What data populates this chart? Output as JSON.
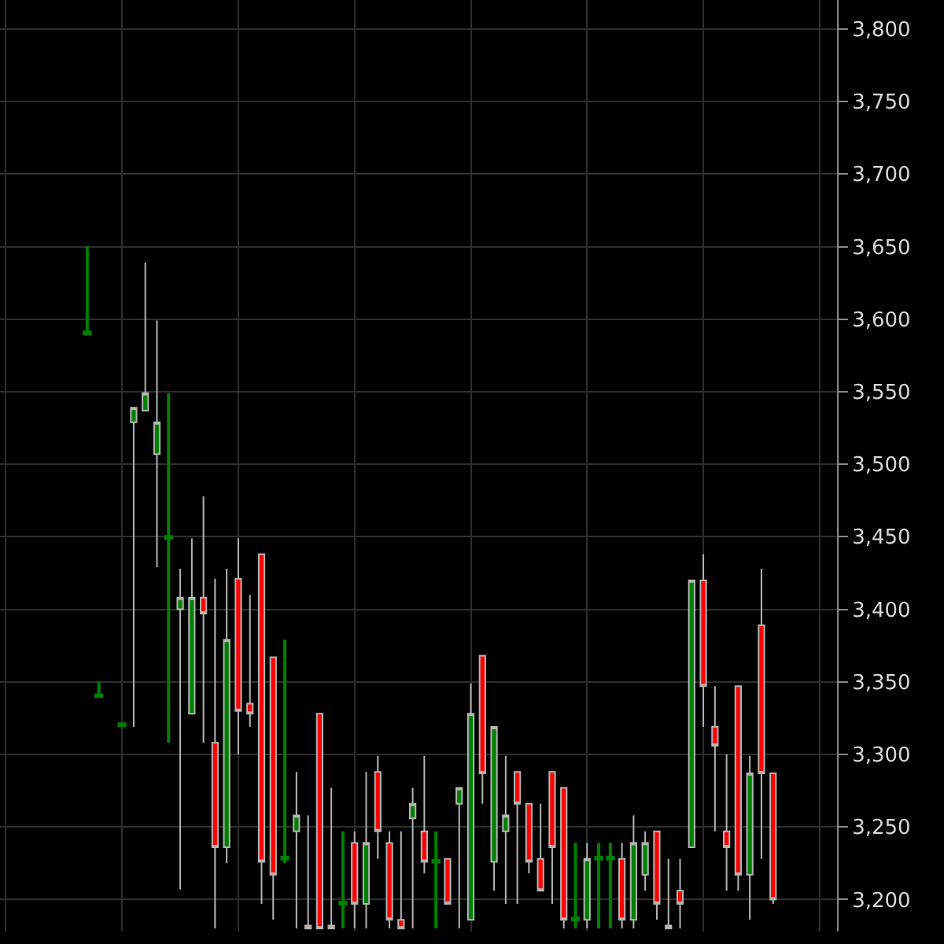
{
  "chart_data": {
    "type": "candlestick",
    "categories": [
      null,
      null,
      null,
      null,
      null,
      null,
      null,
      null,
      null,
      null,
      null,
      null,
      null,
      null,
      null,
      null,
      null,
      null,
      null,
      null,
      null,
      null,
      null,
      null,
      null,
      null,
      null,
      null,
      null,
      null,
      null,
      null,
      null,
      null,
      null,
      null,
      null,
      null,
      null,
      null,
      null,
      null,
      null,
      null,
      null,
      null,
      null,
      null,
      null,
      null,
      null,
      null,
      null,
      null,
      null,
      null,
      null,
      null,
      null,
      null,
      null,
      null,
      null,
      null,
      null,
      null,
      null,
      null,
      null,
      null,
      null,
      null
    ],
    "ohlc": [
      null,
      null,
      null,
      null,
      null,
      null,
      null,
      [
        3590,
        3650,
        3590,
        3591
      ],
      [
        3340,
        3350,
        3340,
        3341
      ],
      null,
      [
        3320,
        3321,
        3320,
        3321
      ],
      [
        3529,
        3539,
        3319,
        3539
      ],
      [
        3537,
        3639,
        3537,
        3549
      ],
      [
        3507,
        3599,
        3429,
        3529
      ],
      [
        3449,
        3549,
        3308,
        3450
      ],
      [
        3400,
        3428,
        3207,
        3408
      ],
      [
        3328,
        3449,
        3328,
        3408
      ],
      [
        3408,
        3478,
        3308,
        3397
      ],
      [
        3308,
        3421,
        3180,
        3236
      ],
      [
        3236,
        3428,
        3225,
        3379
      ],
      [
        3421,
        3449,
        3300,
        3330
      ],
      [
        3335,
        3410,
        3319,
        3328
      ],
      [
        3438,
        3438,
        3197,
        3226
      ],
      [
        3367,
        3367,
        3186,
        3217
      ],
      [
        3228,
        3379,
        3225,
        3229
      ],
      [
        3247,
        3288,
        3180,
        3258
      ],
      [
        3182,
        3258,
        3180,
        3180
      ],
      [
        3328,
        3328,
        3180,
        3180
      ],
      [
        3182,
        3277,
        3180,
        3180
      ],
      [
        3197,
        3247,
        3180,
        3198
      ],
      [
        3239,
        3247,
        3180,
        3197
      ],
      [
        3197,
        3288,
        3180,
        3239
      ],
      [
        3288,
        3299,
        3228,
        3247
      ],
      [
        3239,
        3247,
        3180,
        3186
      ],
      [
        3186,
        3247,
        3180,
        3180
      ],
      [
        3256,
        3277,
        3180,
        3266
      ],
      [
        3247,
        3299,
        3218,
        3226
      ],
      [
        3226,
        3247,
        3180,
        3227
      ],
      [
        3228,
        3228,
        3197,
        3197
      ],
      [
        3266,
        3277,
        3180,
        3277
      ],
      [
        3186,
        3349,
        3186,
        3328
      ],
      [
        3368,
        3368,
        3266,
        3287
      ],
      [
        3226,
        3319,
        3206,
        3319
      ],
      [
        3247,
        3299,
        3197,
        3258
      ],
      [
        3288,
        3288,
        3197,
        3266
      ],
      [
        3266,
        3266,
        3218,
        3226
      ],
      [
        3228,
        3266,
        3206,
        3206
      ],
      [
        3288,
        3288,
        3197,
        3236
      ],
      [
        3277,
        3277,
        3180,
        3186
      ],
      [
        3186,
        3239,
        3180,
        3187
      ],
      [
        3186,
        3239,
        3180,
        3228
      ],
      [
        3228,
        3239,
        3180,
        3229
      ],
      [
        3228,
        3239,
        3180,
        3229
      ],
      [
        3228,
        3239,
        3180,
        3186
      ],
      [
        3186,
        3258,
        3180,
        3239
      ],
      [
        3217,
        3247,
        3206,
        3239
      ],
      [
        3247,
        3247,
        3186,
        3197
      ],
      [
        3182,
        3228,
        3180,
        3180
      ],
      [
        3206,
        3228,
        3180,
        3197
      ],
      [
        3236,
        3420,
        3236,
        3420
      ],
      [
        3420,
        3438,
        3319,
        3347
      ],
      [
        3319,
        3347,
        3247,
        3306
      ],
      [
        3247,
        3300,
        3206,
        3236
      ],
      [
        3347,
        3347,
        3206,
        3217
      ],
      [
        3217,
        3299,
        3186,
        3287
      ],
      [
        3389,
        3428,
        3228,
        3287
      ],
      [
        3287,
        3287,
        3197,
        3200
      ],
      null,
      null,
      null,
      null,
      null
    ],
    "colors": [
      null,
      null,
      null,
      null,
      null,
      null,
      null,
      "#008000",
      "#008000",
      null,
      "#008000",
      "#008000",
      "#008000",
      "#008000",
      "#008000",
      "#008000",
      "#008000",
      "#ff0000",
      "#ff0000",
      "#008000",
      "#ff0000",
      "#ff0000",
      "#ff0000",
      "#ff0000",
      "#008000",
      "#008000",
      "#b4b4b4",
      "#ff0000",
      "#b4b4b4",
      "#008000",
      "#ff0000",
      "#008000",
      "#ff0000",
      "#ff0000",
      "#ff0000",
      "#008000",
      "#ff0000",
      "#008000",
      "#ff0000",
      "#008000",
      "#008000",
      "#ff0000",
      "#008000",
      "#008000",
      "#ff0000",
      "#ff0000",
      "#ff0000",
      "#ff0000",
      "#ff0000",
      "#008000",
      "#008000",
      "#008000",
      "#008000",
      "#ff0000",
      "#008000",
      "#008000",
      "#ff0000",
      "#b4b4b4",
      "#ff0000",
      "#008000",
      "#ff0000",
      "#ff0000",
      "#ff0000",
      "#ff0000",
      "#008000",
      "#ff0000",
      "#ff0000",
      null,
      null,
      null,
      null,
      null
    ],
    "ylim": [
      3178,
      3820
    ],
    "yticks": [
      {
        "value": 3200,
        "label": "3,200"
      },
      {
        "value": 3250,
        "label": "3,250"
      },
      {
        "value": 3300,
        "label": "3,300"
      },
      {
        "value": 3350,
        "label": "3,350"
      },
      {
        "value": 3400,
        "label": "3,400"
      },
      {
        "value": 3450,
        "label": "3,450"
      },
      {
        "value": 3500,
        "label": "3,500"
      },
      {
        "value": 3550,
        "label": "3,550"
      },
      {
        "value": 3600,
        "label": "3,600"
      },
      {
        "value": 3650,
        "label": "3,650"
      },
      {
        "value": 3700,
        "label": "3,700"
      },
      {
        "value": 3750,
        "label": "3,750"
      },
      {
        "value": 3800,
        "label": "3,800"
      }
    ],
    "grid": true,
    "tick_labels": "y"
  }
}
